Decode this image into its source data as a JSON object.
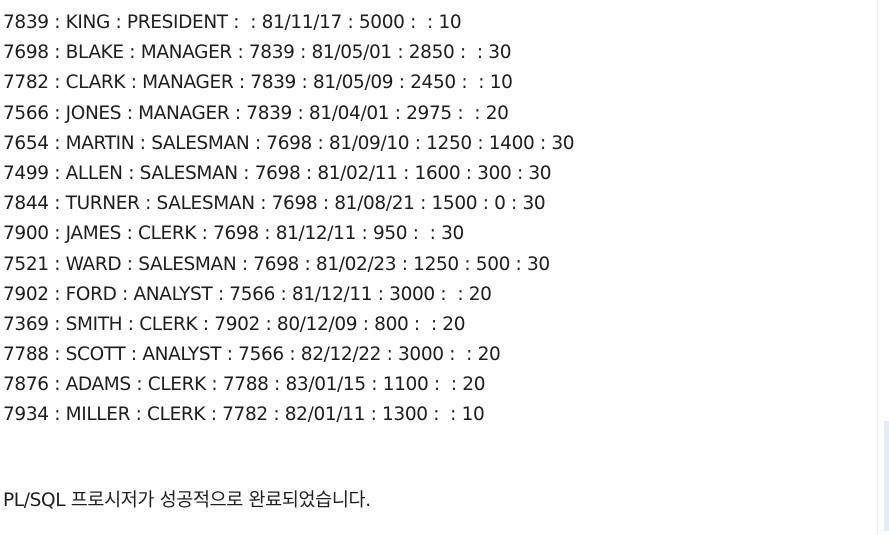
{
  "output": {
    "lines": [
      "7839 : KING : PRESIDENT :  : 81/11/17 : 5000 :  : 10",
      "7698 : BLAKE : MANAGER : 7839 : 81/05/01 : 2850 :  : 30",
      "7782 : CLARK : MANAGER : 7839 : 81/05/09 : 2450 :  : 10",
      "7566 : JONES : MANAGER : 7839 : 81/04/01 : 2975 :  : 20",
      "7654 : MARTIN : SALESMAN : 7698 : 81/09/10 : 1250 : 1400 : 30",
      "7499 : ALLEN : SALESMAN : 7698 : 81/02/11 : 1600 : 300 : 30",
      "7844 : TURNER : SALESMAN : 7698 : 81/08/21 : 1500 : 0 : 30",
      "7900 : JAMES : CLERK : 7698 : 81/12/11 : 950 :  : 30",
      "7521 : WARD : SALESMAN : 7698 : 81/02/23 : 1250 : 500 : 30",
      "7902 : FORD : ANALYST : 7566 : 81/12/11 : 3000 :  : 20",
      "7369 : SMITH : CLERK : 7902 : 80/12/09 : 800 :  : 20",
      "7788 : SCOTT : ANALYST : 7566 : 82/12/22 : 3000 :  : 20",
      "7876 : ADAMS : CLERK : 7788 : 83/01/15 : 1100 :  : 20",
      "7934 : MILLER : CLERK : 7782 : 82/01/11 : 1300 :  : 10"
    ],
    "status_message": "PL/SQL 프로시저가 성공적으로 완료되었습니다."
  }
}
